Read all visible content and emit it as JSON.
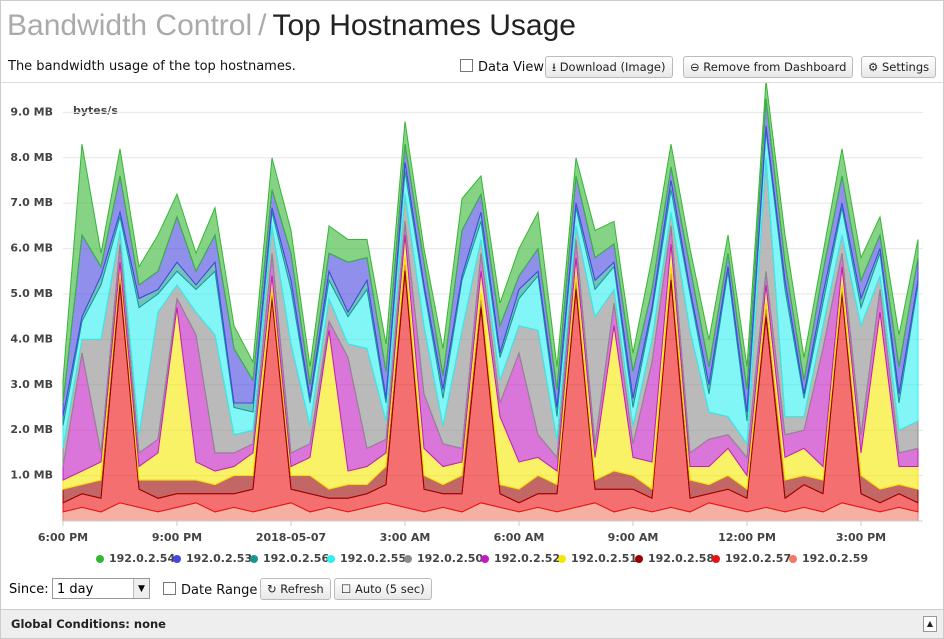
{
  "header": {
    "section": "Bandwidth Control",
    "separator": "/",
    "title": "Top Hostnames Usage"
  },
  "description": "The bandwidth usage of the top hostnames.",
  "toolbar": {
    "data_view": "Data View",
    "download": "Download (Image)",
    "remove": "Remove from Dashboard",
    "settings": "Settings"
  },
  "controls": {
    "since_label": "Since:",
    "since_value": "1 day",
    "date_range": "Date Range",
    "refresh": "Refresh",
    "auto": "Auto (5 sec)"
  },
  "global_conditions": "Global Conditions: none",
  "chart_data": {
    "type": "stacked-area",
    "y_axis_label": "bytes/s",
    "categories": [
      "6:00 PM",
      null,
      null,
      null,
      null,
      null,
      "9:00 PM",
      null,
      null,
      null,
      null,
      null,
      "2018-05-07",
      null,
      null,
      null,
      null,
      null,
      "3:00 AM",
      null,
      null,
      null,
      null,
      null,
      "6:00 AM",
      null,
      null,
      null,
      null,
      null,
      "9:00 AM",
      null,
      null,
      null,
      null,
      null,
      "12:00 PM",
      null,
      null,
      null,
      null,
      null,
      "3:00 PM",
      null,
      null,
      null
    ],
    "ylim": [
      0,
      9.25
    ],
    "yticks": [
      {
        "value": 1,
        "label": "1.0 MB"
      },
      {
        "value": 2,
        "label": "2.0 MB"
      },
      {
        "value": 3,
        "label": "3.0 MB"
      },
      {
        "value": 4,
        "label": "4.0 MB"
      },
      {
        "value": 5,
        "label": "5.0 MB"
      },
      {
        "value": 6,
        "label": "6.0 MB"
      },
      {
        "value": 7,
        "label": "7.0 MB"
      },
      {
        "value": 8,
        "label": "8.0 MB"
      },
      {
        "value": 9,
        "label": "9.0 MB"
      }
    ],
    "series": [
      {
        "name": "192.0.2.54",
        "color": "#35b635",
        "values": [
          0.5,
          2.0,
          0.3,
          0.6,
          0.4,
          0.8,
          0.5,
          0.4,
          0.6,
          0.5,
          0.4,
          0.7,
          0.5,
          0.4,
          0.6,
          0.5,
          0.4,
          0.6,
          0.5,
          0.3,
          0.6,
          0.7,
          0.4,
          0.5,
          0.6,
          0.8,
          0.5,
          0.4,
          0.6,
          0.5,
          0.4,
          0.7,
          0.5,
          0.4,
          0.6,
          0.4,
          0.5,
          0.4,
          0.6,
          0.5,
          0.4,
          0.6,
          0.5,
          0.4,
          0.7,
          0.4
        ]
      },
      {
        "name": "192.0.2.53",
        "color": "#4646e0",
        "values": [
          0.3,
          1.8,
          0.2,
          0.8,
          0.3,
          0.4,
          1.0,
          0.3,
          0.6,
          1.2,
          0.5,
          0.4,
          0.6,
          0.3,
          0.4,
          1.1,
          0.5,
          0.6,
          0.4,
          0.5,
          0.3,
          1.0,
          0.4,
          0.6,
          0.3,
          0.5,
          0.4,
          0.6,
          0.5,
          0.4,
          0.6,
          0.4,
          0.3,
          0.5,
          0.4,
          0.3,
          0.5,
          0.6,
          0.4,
          0.3,
          0.5,
          0.6,
          0.4,
          0.3,
          0.6,
          0.5
        ]
      },
      {
        "name": "192.0.2.56",
        "color": "#1a9595",
        "values": [
          0.2,
          0.1,
          0.2,
          0.1,
          0.2,
          0.1,
          0.2,
          0.1,
          0.2,
          0.1,
          0.2,
          0.1,
          0.2,
          0.1,
          0.2,
          0.1,
          0.2,
          0.1,
          0.2,
          0.1,
          0.2,
          0.1,
          0.2,
          0.1,
          0.2,
          0.1,
          0.2,
          0.1,
          0.2,
          0.1,
          0.2,
          0.1,
          0.2,
          0.1,
          0.2,
          0.1,
          0.2,
          0.1,
          0.2,
          0.1,
          0.2,
          0.1,
          0.2,
          0.1,
          0.2,
          0.1
        ]
      },
      {
        "name": "192.0.2.55",
        "color": "#2ef0f0",
        "values": [
          0.5,
          0.4,
          1.2,
          0.3,
          2.8,
          0.4,
          0.3,
          0.5,
          1.4,
          0.6,
          0.4,
          0.3,
          1.2,
          0.5,
          0.4,
          0.6,
          1.3,
          0.4,
          0.5,
          0.8,
          0.6,
          1.1,
          0.4,
          0.5,
          0.6,
          1.2,
          0.5,
          0.4,
          0.6,
          0.5,
          0.4,
          0.6,
          0.5,
          0.8,
          0.4,
          3.2,
          0.5,
          0.6,
          2.8,
          0.4,
          0.5,
          0.6,
          0.4,
          0.5,
          0.6,
          3.0
        ]
      },
      {
        "name": "192.0.2.50",
        "color": "#8c8c8c",
        "values": [
          0.4,
          0.3,
          2.5,
          0.3,
          0.4,
          2.8,
          0.3,
          0.5,
          2.6,
          0.4,
          0.3,
          0.6,
          2.4,
          0.4,
          0.5,
          0.3,
          2.2,
          0.4,
          0.6,
          1.5,
          0.4,
          2.6,
          0.3,
          0.5,
          0.6,
          2.3,
          0.4,
          0.3,
          2.8,
          0.3,
          0.4,
          0.5,
          0.3,
          2.7,
          0.6,
          0.4,
          0.3,
          2.5,
          0.4,
          0.3,
          0.5,
          0.4,
          2.4,
          0.3,
          0.5,
          0.6
        ]
      },
      {
        "name": "192.0.2.52",
        "color": "#c21bc2",
        "values": [
          0.3,
          2.6,
          0.2,
          0.4,
          0.3,
          0.3,
          0.2,
          2.8,
          0.4,
          0.3,
          0.2,
          0.5,
          0.3,
          0.3,
          0.2,
          2.5,
          0.4,
          0.3,
          0.3,
          1.2,
          0.5,
          0.3,
          0.4,
          0.3,
          2.4,
          0.5,
          0.3,
          0.4,
          0.3,
          0.5,
          0.3,
          2.2,
          0.4,
          0.3,
          0.6,
          0.3,
          0.4,
          0.3,
          0.5,
          0.4,
          2.6,
          0.3,
          0.4,
          0.5,
          0.3,
          0.4
        ]
      },
      {
        "name": "192.0.2.51",
        "color": "#f5e800",
        "values": [
          0.2,
          0.3,
          0.4,
          0.2,
          0.3,
          0.6,
          3.8,
          0.4,
          0.3,
          0.2,
          0.5,
          0.3,
          0.2,
          0.4,
          3.5,
          0.3,
          0.4,
          0.3,
          0.5,
          0.6,
          0.4,
          0.3,
          0.5,
          1.5,
          0.6,
          0.4,
          0.3,
          0.4,
          0.5,
          3.2,
          0.4,
          0.6,
          0.5,
          0.3,
          0.4,
          0.6,
          0.3,
          0.4,
          0.5,
          0.6,
          0.3,
          0.4,
          0.5,
          3.9,
          0.4,
          0.5
        ]
      },
      {
        "name": "192.0.2.58",
        "color": "#990000",
        "values": [
          0.3,
          0.2,
          0.4,
          0.3,
          0.2,
          0.4,
          0.3,
          0.3,
          0.2,
          0.4,
          0.3,
          0.2,
          0.3,
          0.4,
          0.2,
          0.3,
          0.2,
          0.4,
          0.3,
          0.3,
          0.2,
          0.4,
          0.3,
          0.2,
          0.3,
          0.4,
          0.2,
          0.3,
          0.2,
          0.4,
          0.3,
          0.2,
          0.3,
          0.4,
          0.2,
          0.3,
          0.2,
          0.3,
          0.4,
          0.2,
          0.3,
          0.2,
          0.4,
          0.3,
          0.2,
          0.3
        ]
      },
      {
        "name": "192.0.2.57",
        "color": "#ec1010",
        "values": [
          0.2,
          0.3,
          0.3,
          4.8,
          0.4,
          0.3,
          0.3,
          0.2,
          0.4,
          0.3,
          0.5,
          4.6,
          0.3,
          0.4,
          0.2,
          0.3,
          0.3,
          0.4,
          5.2,
          0.5,
          0.3,
          0.4,
          4.3,
          0.3,
          0.2,
          0.3,
          0.4,
          4.8,
          0.3,
          0.5,
          0.4,
          0.3,
          5.0,
          0.3,
          0.2,
          0.4,
          0.3,
          4.2,
          0.3,
          0.5,
          0.4,
          4.6,
          0.3,
          0.2,
          0.3,
          0.2
        ]
      },
      {
        "name": "192.0.2.59",
        "color": "#f07a66",
        "values": [
          0.2,
          0.3,
          0.2,
          0.4,
          0.3,
          0.2,
          0.3,
          0.4,
          0.2,
          0.3,
          0.2,
          0.3,
          0.4,
          0.2,
          0.3,
          0.2,
          0.3,
          0.4,
          0.3,
          0.2,
          0.3,
          0.2,
          0.4,
          0.3,
          0.2,
          0.3,
          0.2,
          0.3,
          0.4,
          0.2,
          0.3,
          0.2,
          0.3,
          0.2,
          0.4,
          0.3,
          0.2,
          0.3,
          0.2,
          0.3,
          0.2,
          0.4,
          0.3,
          0.2,
          0.3,
          0.2
        ]
      }
    ]
  }
}
